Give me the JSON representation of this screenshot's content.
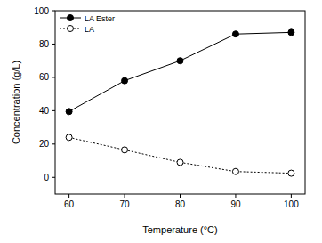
{
  "chart_data": {
    "type": "line",
    "x_label": "Temperature (°C)",
    "y_label": "Concentration (g/L)",
    "x": [
      60,
      70,
      80,
      90,
      100
    ],
    "series": [
      {
        "name": "LA Ester",
        "color": "#000000",
        "marker": "filled-circle",
        "line_style": "solid",
        "values": [
          39.5,
          58,
          70,
          86,
          87
        ]
      },
      {
        "name": "LA",
        "color": "#000000",
        "marker": "open-circle",
        "line_style": "dotted",
        "values": [
          24,
          16.5,
          9,
          3.5,
          2.5
        ]
      }
    ],
    "xlim": [
      57.5,
      102.5
    ],
    "ylim": [
      -10,
      100
    ],
    "xticks": [
      60,
      70,
      80,
      90,
      100
    ],
    "yticks": [
      0,
      20,
      40,
      60,
      80,
      100
    ],
    "grid": false,
    "legend": "top-left"
  }
}
